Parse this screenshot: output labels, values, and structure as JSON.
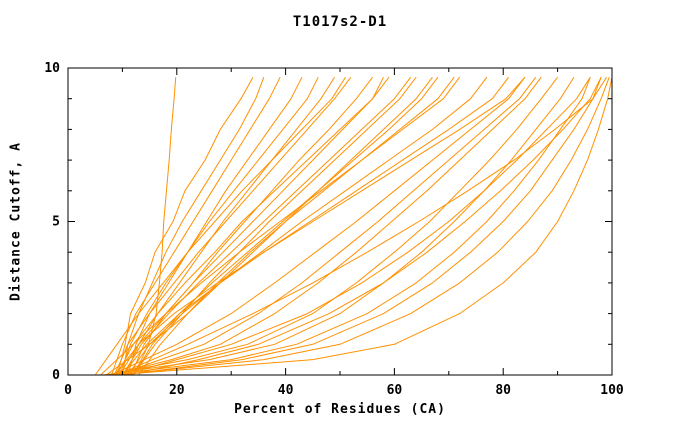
{
  "chart_data": {
    "type": "line",
    "title": "T1017s2-D1",
    "xlabel": "Percent of Residues (CA)",
    "ylabel": "Distance Cutoff, A",
    "xlim": [
      0,
      100
    ],
    "ylim": [
      0,
      10
    ],
    "xticks_major": [
      0,
      20,
      40,
      60,
      80,
      100
    ],
    "xticks_minor": [
      10,
      30,
      50,
      70,
      90
    ],
    "yticks_major": [
      0,
      5,
      10
    ],
    "yticks_minor": [
      1,
      2,
      3,
      4,
      6,
      7,
      8,
      9
    ],
    "grid": false,
    "legend": null,
    "line_color": "#ff9100",
    "frame_color": "#000000",
    "y_grid_points": [
      0,
      0.5,
      1,
      2,
      3,
      4,
      5,
      6,
      7,
      8,
      9,
      9.7
    ],
    "series": [
      {
        "x": [
          12,
          13.5,
          14.8,
          16.2,
          16.8,
          17.3,
          17.6,
          18.1,
          18.6,
          19,
          19.5,
          19.8
        ]
      },
      {
        "x": [
          9,
          9.8,
          10.5,
          11.5,
          14.2,
          16,
          19.3,
          21.5,
          25.2,
          28,
          31.8,
          34
        ]
      },
      {
        "x": [
          10,
          10.5,
          11,
          13,
          15.5,
          18,
          21,
          24.5,
          28,
          31.5,
          34.5,
          36
        ]
      },
      {
        "x": [
          8,
          9,
          10,
          12.5,
          16,
          19.5,
          23,
          26.5,
          30,
          33.5,
          37,
          39
        ]
      },
      {
        "x": [
          11,
          11.8,
          12.5,
          15,
          18.5,
          22,
          25.5,
          29,
          33,
          37,
          41,
          43
        ]
      },
      {
        "x": [
          9.5,
          10.5,
          11.5,
          14.5,
          18,
          22,
          26,
          30.5,
          35,
          39.5,
          44,
          46
        ]
      },
      {
        "x": [
          10.5,
          11.8,
          13,
          16.5,
          20.5,
          24.5,
          28.5,
          33,
          37.5,
          42,
          46.5,
          49
        ]
      },
      {
        "x": [
          8.5,
          9.8,
          11,
          15,
          19.5,
          24,
          29,
          34,
          39,
          44,
          49,
          52
        ]
      },
      {
        "x": [
          11.5,
          12.8,
          14,
          18,
          23,
          27.5,
          32.5,
          37.5,
          42.5,
          48,
          53,
          56
        ]
      },
      {
        "x": [
          9,
          10.5,
          12,
          16.5,
          21.5,
          27,
          32,
          38,
          44,
          50,
          56,
          59
        ]
      },
      {
        "x": [
          10,
          11.8,
          13.5,
          18.5,
          24,
          30,
          36,
          42,
          48,
          54,
          60,
          63
        ]
      },
      {
        "x": [
          12,
          13.8,
          15.5,
          20.5,
          26.5,
          33,
          39.5,
          46,
          52.5,
          59,
          65,
          68
        ]
      },
      {
        "x": [
          9.5,
          11.2,
          13,
          18,
          24.5,
          31.5,
          39,
          46.5,
          54,
          61.5,
          69,
          72
        ]
      },
      {
        "x": [
          11,
          13,
          15,
          21,
          28,
          35.5,
          43,
          51,
          59,
          67,
          74,
          77
        ]
      },
      {
        "x": [
          10,
          12.2,
          14.5,
          20.5,
          28,
          36,
          44.5,
          53,
          61.5,
          70,
          78,
          81
        ]
      },
      {
        "x": [
          8.5,
          10.8,
          13,
          19.5,
          27.5,
          36,
          45,
          54,
          63,
          72,
          80.5,
          84
        ]
      },
      {
        "x": [
          7,
          22,
          33,
          45,
          53,
          60,
          66.5,
          72,
          77.5,
          82.5,
          87,
          90
        ]
      },
      {
        "x": [
          8,
          19,
          28,
          38,
          46,
          53,
          59.5,
          66,
          72,
          78,
          84,
          87
        ]
      },
      {
        "x": [
          6.5,
          26,
          38,
          50,
          58,
          65,
          71,
          76.5,
          81.5,
          86,
          90.5,
          93
        ]
      },
      {
        "x": [
          7.5,
          30,
          42,
          55,
          64,
          71,
          77,
          82,
          86.5,
          90.5,
          94.5,
          96
        ]
      },
      {
        "x": [
          9,
          17,
          25,
          35,
          43,
          50,
          57,
          63.5,
          70,
          76.5,
          83,
          86
        ]
      },
      {
        "x": [
          8,
          14,
          20,
          30,
          38,
          45.5,
          53,
          60,
          67,
          74,
          81,
          84
        ]
      },
      {
        "x": [
          10,
          32,
          45,
          58,
          67,
          74,
          80,
          85,
          89,
          93,
          96.5,
          98
        ]
      },
      {
        "x": [
          9,
          36,
          50,
          63,
          72,
          79,
          84.5,
          89,
          92.5,
          95.5,
          98,
          99.5
        ]
      },
      {
        "x": [
          8.5,
          45,
          60,
          72,
          80,
          86,
          90,
          93,
          95.5,
          97.5,
          99.2,
          100
        ]
      },
      {
        "x": [
          7,
          11,
          15,
          22,
          28,
          34,
          40,
          46,
          52,
          58,
          64,
          67
        ]
      },
      {
        "x": [
          6,
          9,
          12,
          18,
          23,
          28.5,
          34,
          39.5,
          45,
          50.5,
          56,
          58
        ]
      },
      {
        "x": [
          5,
          7,
          9,
          13,
          17.5,
          22,
          27,
          32,
          37.5,
          43,
          48.5,
          51
        ]
      },
      {
        "x": [
          13,
          15,
          17,
          22,
          27.5,
          33.5,
          40,
          47,
          54,
          61,
          68,
          71
        ]
      },
      {
        "x": [
          12,
          14,
          16,
          21,
          26,
          31.5,
          37,
          43,
          49,
          55,
          61,
          64
        ]
      },
      {
        "x": [
          10,
          20,
          30,
          44,
          54,
          62.5,
          70,
          76.5,
          82.5,
          88,
          93.5,
          96
        ]
      },
      {
        "x": [
          11,
          24,
          35,
          48,
          58,
          66,
          73,
          79.5,
          85.5,
          91,
          96,
          98
        ]
      },
      {
        "x": [
          9,
          15.5,
          22,
          34,
          45,
          55,
          64.5,
          73.5,
          82,
          89.5,
          96.5,
          99
        ]
      }
    ]
  }
}
